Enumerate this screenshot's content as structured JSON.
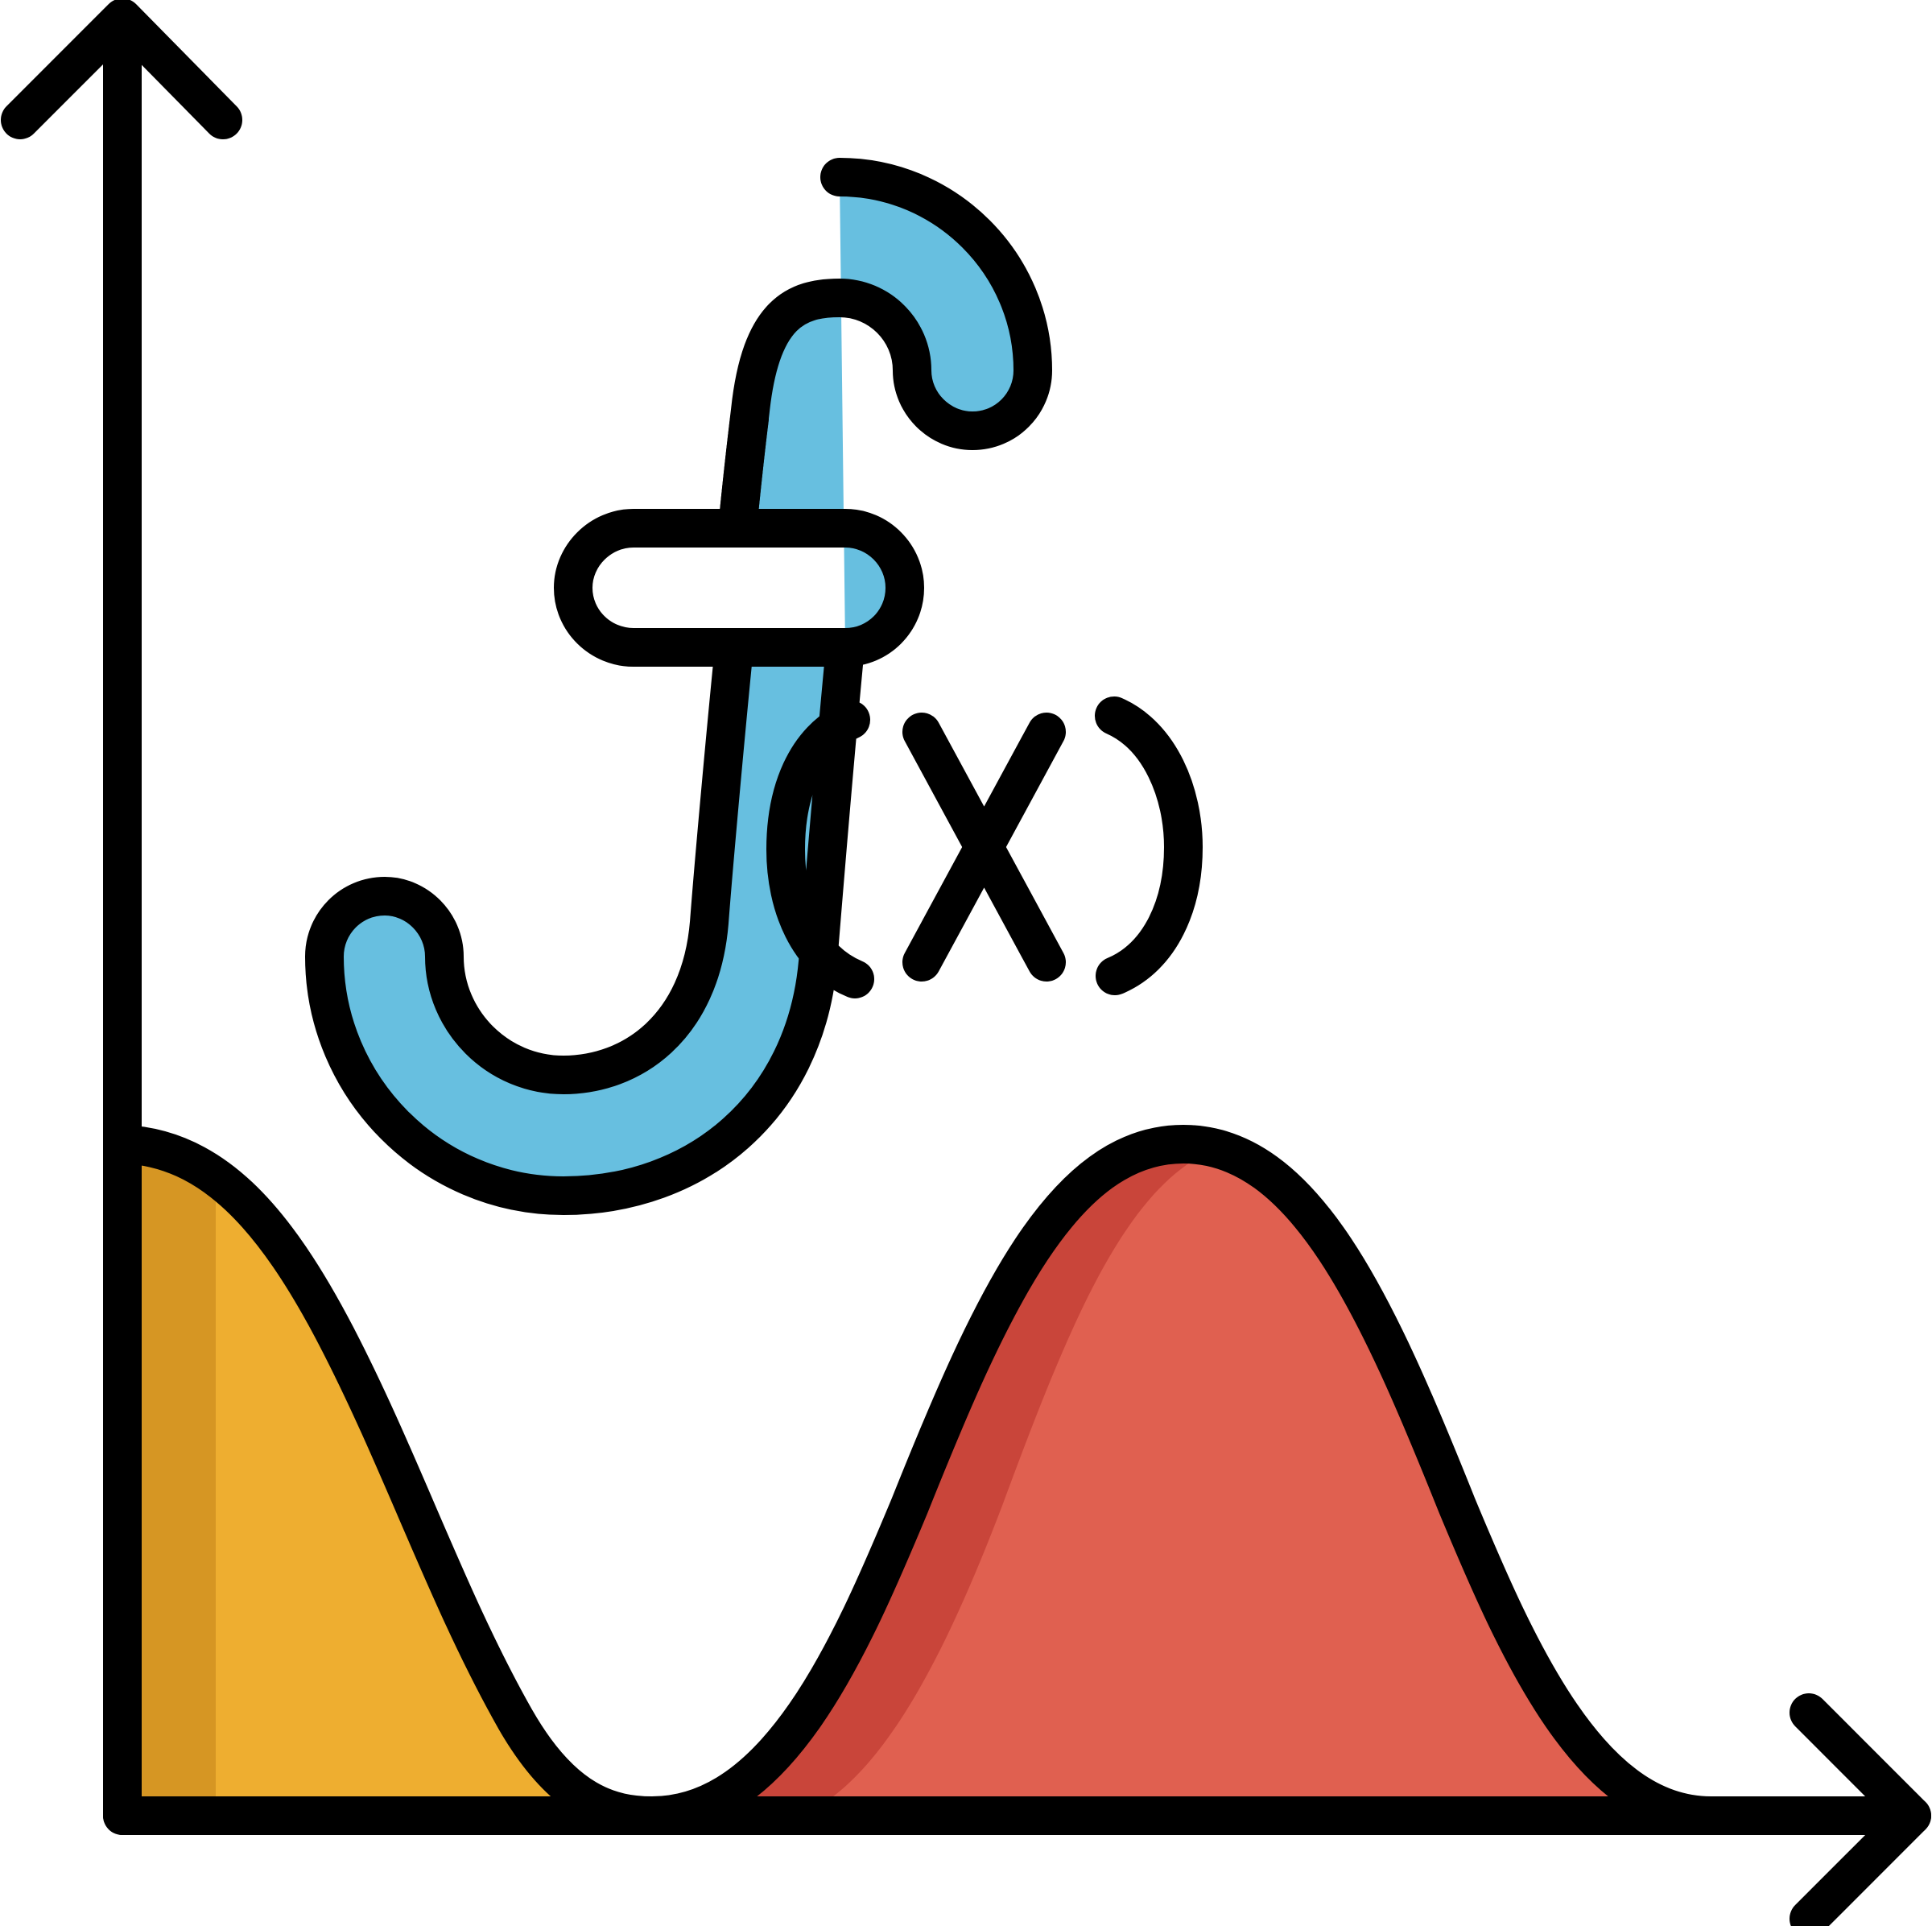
{
  "illustration": {
    "subject": "function-graph-icon",
    "function_label": "f(x)",
    "colors": {
      "outline": "#000000",
      "function_fill": "#67BFE0",
      "left_hump_fill": "#EEAE30",
      "left_hump_shade": "#D69623",
      "right_hump_fill": "#E06050",
      "right_hump_shade": "#C9453A",
      "background": "#FFFFFF"
    }
  }
}
